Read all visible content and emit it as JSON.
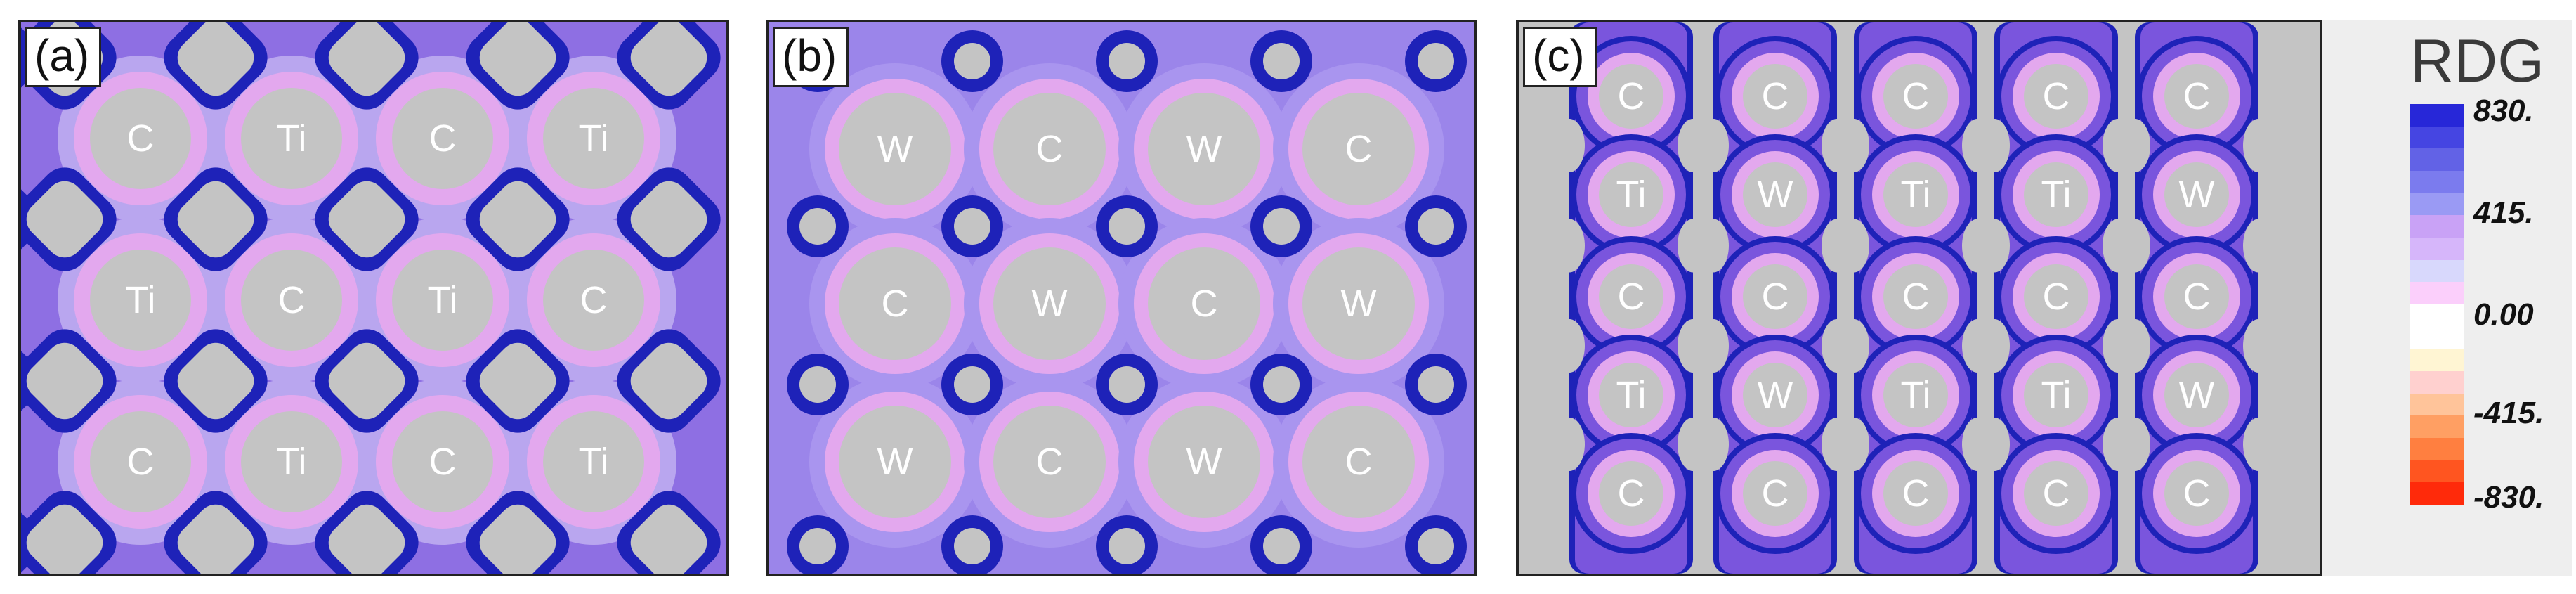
{
  "panels": {
    "a": {
      "tag": "(a)",
      "labels": [
        [
          "C",
          "Ti",
          "C",
          "Ti"
        ],
        [
          "Ti",
          "C",
          "Ti",
          "C"
        ],
        [
          "C",
          "Ti",
          "C",
          "Ti"
        ]
      ]
    },
    "b": {
      "tag": "(b)",
      "labels": [
        [
          "W",
          "C",
          "W",
          "C"
        ],
        [
          "C",
          "W",
          "C",
          "W"
        ],
        [
          "W",
          "C",
          "W",
          "C"
        ]
      ]
    },
    "c": {
      "tag": "(c)",
      "labels": [
        [
          "C",
          "C",
          "C",
          "C",
          "C"
        ],
        [
          "Ti",
          "W",
          "Ti",
          "Ti",
          "W"
        ],
        [
          "C",
          "C",
          "C",
          "C",
          "C"
        ],
        [
          "Ti",
          "W",
          "Ti",
          "Ti",
          "W"
        ],
        [
          "C",
          "C",
          "C",
          "C",
          "C"
        ]
      ]
    }
  },
  "legend": {
    "title": "RDG",
    "ticks": [
      "830.",
      "415.",
      "0.00",
      "-415.",
      "-830."
    ],
    "colors": [
      "#2727d8",
      "#4545e2",
      "#6262e6",
      "#7b7bee",
      "#9a9af4",
      "#c9a2f6",
      "#d6b6fa",
      "#d8d8fc",
      "#fbcffb",
      "#ffffff",
      "#ffffff",
      "#fff5d3",
      "#ffd0cf",
      "#ffc49a",
      "#ff9f63",
      "#ff7f40",
      "#ff5520",
      "#ff2a0a"
    ]
  },
  "colors": {
    "background_gray": "#c4c4c4",
    "dark_blue": "#1e22b8",
    "mid_purple": "#7a55dd",
    "light_pink": "#e3a8ee",
    "lavender": "#b9a6ef"
  }
}
